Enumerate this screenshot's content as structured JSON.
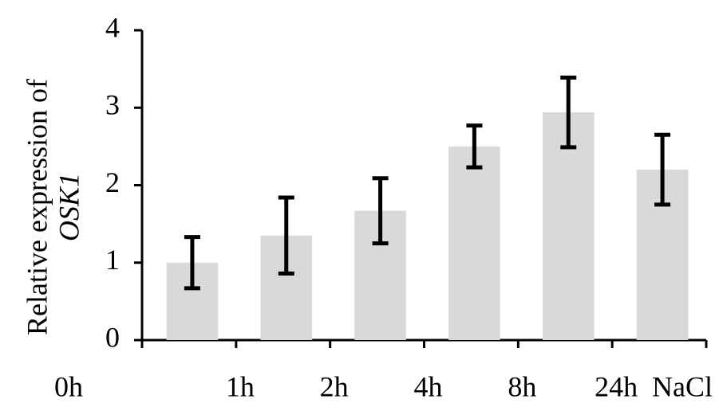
{
  "chart_data": {
    "type": "bar",
    "y_label": "Relative expression of",
    "y_label_gene": "OSK1",
    "categories": [
      null,
      null,
      null,
      null,
      null,
      null
    ],
    "x_tick_labels": [
      "0h",
      "1h",
      "2h",
      "4h",
      "8h",
      "24h",
      "NaCl"
    ],
    "values": [
      1.0,
      1.35,
      1.67,
      2.5,
      2.94,
      2.2
    ],
    "errors": [
      0.33,
      0.49,
      0.42,
      0.27,
      0.45,
      0.45
    ],
    "color": "#d9d9d9",
    "error_color": "#000000",
    "ylim": [
      0,
      4
    ],
    "yticks": [
      0,
      1,
      2,
      3,
      4
    ],
    "grid": false
  }
}
